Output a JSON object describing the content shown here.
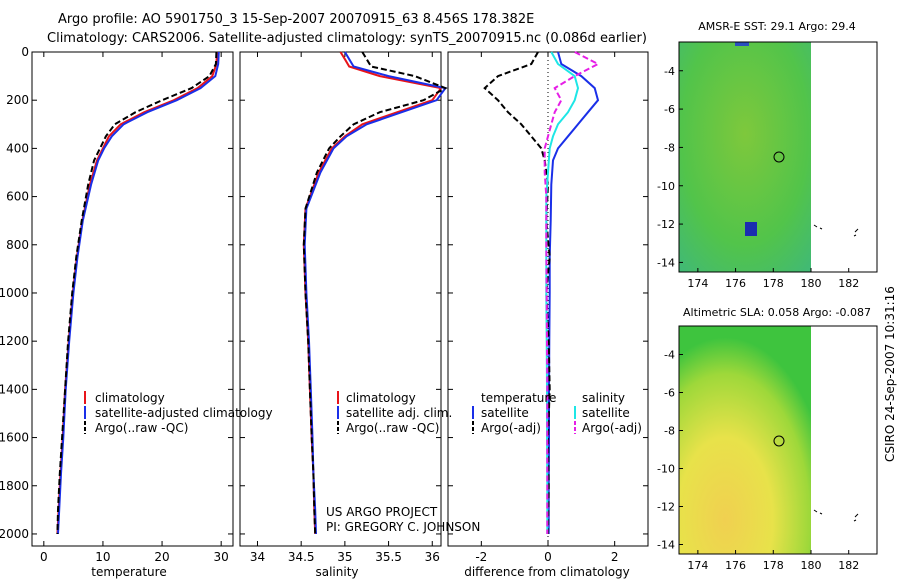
{
  "header": {
    "line1": "Argo profile: AO 5901750_3 15-Sep-2007 20070915_63 8.456S 178.382E",
    "line2": "Climatology: CARS2006. Satellite-adjusted climatology: synTS_20070915.nc (0.086d earlier)"
  },
  "side_label": "CSIRO 24-Sep-2007 10:31:16",
  "credit": {
    "line1": "US ARGO PROJECT",
    "line2": "PI: GREGORY C. JOHNSON"
  },
  "colors": {
    "clim": "#e8141a",
    "sat": "#1a2fe8",
    "argo": "#000000",
    "sal_sat": "#1ee6e6",
    "sal_argo": "#e61ee6"
  },
  "chart_data": [
    {
      "id": "temperature",
      "type": "line",
      "xlabel": "temperature",
      "xlim": [
        -2,
        32
      ],
      "ylim": [
        0,
        2050
      ],
      "xticks": [
        0,
        10,
        20,
        30
      ],
      "yticks": [
        0,
        200,
        400,
        600,
        800,
        1000,
        1200,
        1400,
        1600,
        1800,
        2000
      ],
      "legend": [
        "climatology",
        "satellite-adjusted climatology",
        "Argo(..raw -QC)"
      ],
      "series": [
        {
          "name": "climatology",
          "color": "clim",
          "x": [
            29.3,
            29.2,
            28.5,
            26,
            22,
            17,
            13,
            11,
            10,
            9,
            7.8,
            6.5,
            5.6,
            4.9,
            4.2,
            3.6,
            3.2,
            2.8,
            2.5,
            2.3
          ],
          "y": [
            0,
            50,
            100,
            150,
            200,
            250,
            300,
            350,
            400,
            450,
            550,
            700,
            850,
            1000,
            1200,
            1400,
            1600,
            1750,
            1900,
            2000
          ]
        },
        {
          "name": "satellite-adjusted",
          "color": "sat",
          "x": [
            29.6,
            29.5,
            29,
            26.5,
            22.5,
            17.5,
            13.5,
            11.5,
            10.2,
            9.2,
            8,
            6.6,
            5.7,
            5,
            4.3,
            3.7,
            3.3,
            2.9,
            2.6,
            2.4
          ],
          "y": [
            0,
            50,
            100,
            150,
            200,
            250,
            300,
            350,
            400,
            450,
            550,
            700,
            850,
            1000,
            1200,
            1400,
            1600,
            1750,
            1900,
            2000
          ]
        },
        {
          "name": "Argo",
          "color": "argo",
          "dashed": true,
          "x": [
            29.2,
            29.1,
            28,
            25,
            20,
            15.5,
            12,
            10.5,
            9.5,
            8.5,
            7.5,
            6.4,
            5.5,
            4.8,
            4.1,
            3.6,
            3.1,
            2.7,
            2.4,
            2.3
          ],
          "y": [
            0,
            50,
            100,
            150,
            200,
            250,
            300,
            350,
            400,
            450,
            550,
            700,
            850,
            1000,
            1200,
            1400,
            1600,
            1750,
            1900,
            2000
          ]
        }
      ]
    },
    {
      "id": "salinity",
      "type": "line",
      "xlabel": "salinity",
      "xlim": [
        33.8,
        36.1
      ],
      "ylim": [
        0,
        2050
      ],
      "xticks": [
        34,
        34.5,
        35,
        35.5,
        36
      ],
      "xticklabels": [
        "34",
        "34.5",
        "35",
        "35.5",
        "36"
      ],
      "legend": [
        "climatology",
        "satellite adj. clim.",
        "Argo(..raw -QC)"
      ],
      "series": [
        {
          "name": "climatology",
          "color": "clim",
          "x": [
            34.95,
            35.0,
            35.05,
            35.4,
            36.1,
            36.0,
            35.6,
            35.2,
            35.0,
            34.85,
            34.7,
            34.55,
            34.53,
            34.55,
            34.58,
            34.6,
            34.62,
            34.64,
            34.65,
            34.66
          ],
          "y": [
            0,
            30,
            60,
            100,
            150,
            200,
            250,
            300,
            350,
            400,
            500,
            650,
            800,
            1000,
            1200,
            1400,
            1600,
            1750,
            1900,
            2000
          ]
        },
        {
          "name": "satellite-adjusted",
          "color": "sat",
          "x": [
            35.0,
            35.05,
            35.1,
            35.5,
            36.15,
            36.05,
            35.65,
            35.25,
            35.02,
            34.87,
            34.72,
            34.56,
            34.54,
            34.56,
            34.59,
            34.61,
            34.63,
            34.64,
            34.66,
            34.67
          ],
          "y": [
            0,
            30,
            60,
            100,
            150,
            200,
            250,
            300,
            350,
            400,
            500,
            650,
            800,
            1000,
            1200,
            1400,
            1600,
            1750,
            1900,
            2000
          ]
        },
        {
          "name": "Argo",
          "color": "argo",
          "dashed": true,
          "x": [
            35.2,
            35.25,
            35.3,
            35.8,
            36.15,
            35.9,
            35.4,
            35.1,
            34.95,
            34.82,
            34.68,
            34.55,
            34.53,
            34.55,
            34.58,
            34.6,
            34.62,
            34.64,
            34.65,
            34.66
          ],
          "y": [
            0,
            30,
            60,
            100,
            150,
            200,
            250,
            300,
            350,
            400,
            500,
            650,
            800,
            1000,
            1200,
            1400,
            1600,
            1750,
            1900,
            2000
          ]
        }
      ]
    },
    {
      "id": "difference",
      "type": "line",
      "xlabel": "difference from climatology",
      "xlim": [
        -3,
        3
      ],
      "ylim": [
        0,
        2050
      ],
      "xticks": [
        -2,
        0,
        2
      ],
      "legend_left_title": "temperature",
      "legend_right_title": "salinity",
      "legend_left": [
        "satellite",
        "Argo(-adj)"
      ],
      "legend_right": [
        "satellite",
        "Argo(-adj)"
      ],
      "series": [
        {
          "name": "temperature satellite",
          "color": "sat",
          "x": [
            0.3,
            0.4,
            1.0,
            1.4,
            1.5,
            1.2,
            0.9,
            0.6,
            0.3,
            0.15,
            0.1,
            0.08,
            0.05,
            0.05,
            0.04,
            0.03,
            0.03,
            0.02,
            0.02
          ],
          "y": [
            0,
            50,
            100,
            150,
            200,
            250,
            300,
            350,
            400,
            450,
            550,
            700,
            850,
            1000,
            1200,
            1400,
            1600,
            1800,
            2000
          ]
        },
        {
          "name": "temperature Argo",
          "color": "argo",
          "dashed": true,
          "x": [
            -0.3,
            -0.5,
            -1.5,
            -1.9,
            -1.5,
            -1.2,
            -0.8,
            -0.5,
            -0.2,
            -0.1,
            0.0,
            -0.05,
            0.05,
            -0.05,
            0.02,
            0.05,
            0.0,
            0.02,
            0.0
          ],
          "y": [
            0,
            50,
            100,
            150,
            200,
            250,
            300,
            350,
            400,
            450,
            550,
            700,
            850,
            1000,
            1200,
            1400,
            1600,
            1800,
            2000
          ]
        },
        {
          "name": "salinity satellite",
          "color": "sal_sat",
          "x": [
            0.1,
            0.3,
            0.8,
            0.9,
            0.8,
            0.6,
            0.3,
            0.15,
            0.05,
            0.0,
            -0.05,
            -0.05,
            -0.05,
            -0.04,
            -0.03,
            -0.03,
            -0.02,
            -0.02
          ],
          "y": [
            0,
            50,
            100,
            150,
            200,
            250,
            300,
            350,
            400,
            500,
            600,
            800,
            1000,
            1200,
            1400,
            1600,
            1800,
            2000
          ]
        },
        {
          "name": "salinity Argo",
          "color": "sal_argo",
          "dashed": true,
          "x": [
            0.8,
            1.5,
            0.8,
            0.2,
            0.4,
            0.2,
            0.1,
            0.0,
            -0.1,
            -0.1,
            -0.05,
            -0.05,
            -0.04,
            -0.03,
            -0.02,
            -0.02,
            -0.02,
            -0.02
          ],
          "y": [
            0,
            50,
            100,
            150,
            200,
            250,
            300,
            350,
            400,
            500,
            600,
            800,
            1000,
            1200,
            1400,
            1600,
            1800,
            2000
          ]
        }
      ]
    },
    {
      "id": "sst_map",
      "type": "heatmap",
      "title": "AMSR-E SST: 29.1 Argo: 29.4",
      "xlim": [
        173,
        183.5
      ],
      "ylim": [
        -14.5,
        -2.5
      ],
      "xticks": [
        174,
        176,
        178,
        180,
        182
      ],
      "yticks": [
        -4,
        -6,
        -8,
        -10,
        -12,
        -14
      ],
      "marker": {
        "lon": 178.382,
        "lat": -8.456
      }
    },
    {
      "id": "sla_map",
      "type": "heatmap",
      "title": "Altimetric SLA: 0.058 Argo: -0.087",
      "xlim": [
        173,
        183.5
      ],
      "ylim": [
        -14.5,
        -2.5
      ],
      "xticks": [
        174,
        176,
        178,
        180,
        182
      ],
      "yticks": [
        -4,
        -6,
        -8,
        -10,
        -12,
        -14
      ],
      "marker": {
        "lon": 178.382,
        "lat": -8.456
      }
    }
  ]
}
